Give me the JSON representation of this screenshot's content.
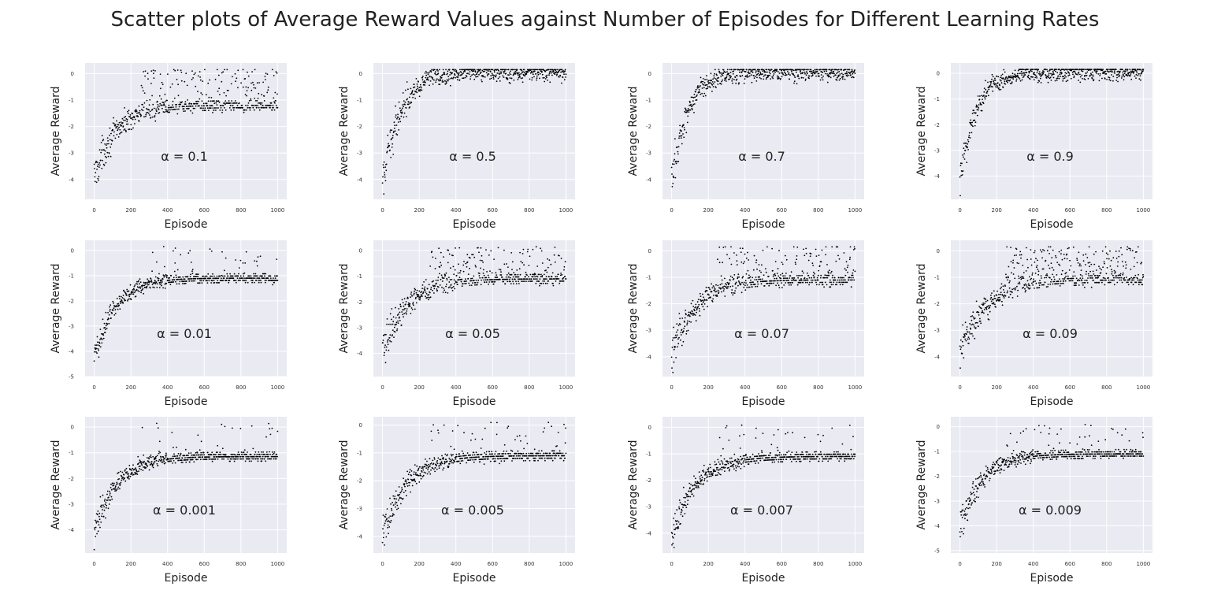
{
  "figure": {
    "title": "Scatter plots of Average Reward Values against Number of Episodes for Different Learning Rates"
  },
  "chart_data": [
    {
      "type": "scatter",
      "title": "",
      "annotation": "α = 0.1",
      "xlabel": "Episode",
      "ylabel": "Average Reward",
      "xlim": [
        -50,
        1050
      ],
      "ylim": [
        -4.75,
        0.4
      ],
      "xticks": [
        0,
        200,
        400,
        600,
        800,
        1000
      ],
      "yticks": [
        -4,
        -3,
        -2,
        -1,
        0
      ],
      "grid": true,
      "series": [
        {
          "marker_color": "#000000",
          "trend": {
            "start": -3.9,
            "end": -1.2,
            "rate": 0.0085,
            "offset": -0.2,
            "spread": 0.3,
            "outlier_frac": 0.35,
            "outlier_max": 0.15
          }
        }
      ]
    },
    {
      "type": "scatter",
      "title": "",
      "annotation": "α = 0.5",
      "xlabel": "Episode",
      "ylabel": "Average Reward",
      "xlim": [
        -50,
        1050
      ],
      "ylim": [
        -4.75,
        0.4
      ],
      "xticks": [
        0,
        200,
        400,
        600,
        800,
        1000
      ],
      "yticks": [
        -4,
        -3,
        -2,
        -1,
        0
      ],
      "grid": true,
      "series": [
        {
          "marker_color": "#000000",
          "trend": {
            "start": -4.3,
            "end": 0.05,
            "rate": 0.011,
            "offset": -0.5,
            "spread": 0.35,
            "outlier_frac": 0.02,
            "outlier_max": 0.1
          }
        }
      ]
    },
    {
      "type": "scatter",
      "title": "",
      "annotation": "α = 0.7",
      "xlabel": "Episode",
      "ylabel": "Average Reward",
      "xlim": [
        -50,
        1050
      ],
      "ylim": [
        -4.75,
        0.4
      ],
      "xticks": [
        0,
        200,
        400,
        600,
        800,
        1000
      ],
      "yticks": [
        -4,
        -3,
        -2,
        -1,
        0
      ],
      "grid": true,
      "series": [
        {
          "marker_color": "#000000",
          "trend": {
            "start": -4.2,
            "end": 0.05,
            "rate": 0.012,
            "offset": -0.45,
            "spread": 0.35,
            "outlier_frac": 0.02,
            "outlier_max": 0.1
          }
        }
      ]
    },
    {
      "type": "scatter",
      "title": "",
      "annotation": "α = 0.9",
      "xlabel": "Episode",
      "ylabel": "Average Reward",
      "xlim": [
        -50,
        1050
      ],
      "ylim": [
        -4.9,
        0.4
      ],
      "xticks": [
        0,
        200,
        400,
        600,
        800,
        1000
      ],
      "yticks": [
        -4,
        -3,
        -2,
        -1,
        0
      ],
      "grid": true,
      "series": [
        {
          "marker_color": "#000000",
          "trend": {
            "start": -4.3,
            "end": 0.05,
            "rate": 0.012,
            "offset": -0.5,
            "spread": 0.35,
            "outlier_frac": 0.02,
            "outlier_max": 0.1
          }
        }
      ]
    },
    {
      "type": "scatter",
      "title": "",
      "annotation": "α = 0.01",
      "xlabel": "Episode",
      "ylabel": "Average Reward",
      "xlim": [
        -50,
        1050
      ],
      "ylim": [
        -5.0,
        0.4
      ],
      "xticks": [
        0,
        200,
        400,
        600,
        800,
        1000
      ],
      "yticks": [
        -5,
        -4,
        -3,
        -2,
        -1,
        0
      ],
      "grid": true,
      "series": [
        {
          "marker_color": "#000000",
          "trend": {
            "start": -4.3,
            "end": -1.1,
            "rate": 0.009,
            "offset": -0.05,
            "spread": 0.25,
            "outlier_frac": 0.08,
            "outlier_max": 0.1
          }
        }
      ]
    },
    {
      "type": "scatter",
      "title": "",
      "annotation": "α = 0.05",
      "xlabel": "Episode",
      "ylabel": "Average Reward",
      "xlim": [
        -50,
        1050
      ],
      "ylim": [
        -4.9,
        0.4
      ],
      "xticks": [
        0,
        200,
        400,
        600,
        800,
        1000
      ],
      "yticks": [
        -4,
        -3,
        -2,
        -1,
        0
      ],
      "grid": true,
      "series": [
        {
          "marker_color": "#000000",
          "trend": {
            "start": -3.9,
            "end": -1.1,
            "rate": 0.0075,
            "offset": -0.1,
            "spread": 0.3,
            "outlier_frac": 0.3,
            "outlier_max": 0.1
          }
        }
      ]
    },
    {
      "type": "scatter",
      "title": "",
      "annotation": "α = 0.07",
      "xlabel": "Episode",
      "ylabel": "Average Reward",
      "xlim": [
        -50,
        1050
      ],
      "ylim": [
        -4.75,
        0.4
      ],
      "xticks": [
        0,
        200,
        400,
        600,
        800,
        1000
      ],
      "yticks": [
        -4,
        -3,
        -2,
        -1,
        0
      ],
      "grid": true,
      "series": [
        {
          "marker_color": "#000000",
          "trend": {
            "start": -4.0,
            "end": -1.1,
            "rate": 0.008,
            "offset": -0.1,
            "spread": 0.3,
            "outlier_frac": 0.32,
            "outlier_max": 0.15
          }
        }
      ]
    },
    {
      "type": "scatter",
      "title": "",
      "annotation": "α = 0.09",
      "xlabel": "Episode",
      "ylabel": "Average Reward",
      "xlim": [
        -50,
        1050
      ],
      "ylim": [
        -4.75,
        0.4
      ],
      "xticks": [
        0,
        200,
        400,
        600,
        800,
        1000
      ],
      "yticks": [
        -4,
        -3,
        -2,
        -1,
        0
      ],
      "grid": true,
      "series": [
        {
          "marker_color": "#000000",
          "trend": {
            "start": -4.0,
            "end": -1.1,
            "rate": 0.0075,
            "offset": -0.1,
            "spread": 0.3,
            "outlier_frac": 0.45,
            "outlier_max": 0.15
          }
        }
      ]
    },
    {
      "type": "scatter",
      "title": "",
      "annotation": "α = 0.001",
      "xlabel": "Episode",
      "ylabel": "Average Reward",
      "xlim": [
        -50,
        1050
      ],
      "ylim": [
        -4.9,
        0.4
      ],
      "xticks": [
        0,
        200,
        400,
        600,
        800,
        1000
      ],
      "yticks": [
        -4,
        -3,
        -2,
        -1,
        0
      ],
      "grid": true,
      "series": [
        {
          "marker_color": "#000000",
          "trend": {
            "start": -4.2,
            "end": -1.15,
            "rate": 0.0085,
            "offset": -0.05,
            "spread": 0.25,
            "outlier_frac": 0.07,
            "outlier_max": 0.1
          }
        }
      ]
    },
    {
      "type": "scatter",
      "title": "",
      "annotation": "α = 0.005",
      "xlabel": "Episode",
      "ylabel": "Average Reward",
      "xlim": [
        -50,
        1050
      ],
      "ylim": [
        -4.6,
        0.3
      ],
      "xticks": [
        0,
        200,
        400,
        600,
        800,
        1000
      ],
      "yticks": [
        -4,
        -3,
        -2,
        -1,
        0
      ],
      "grid": true,
      "series": [
        {
          "marker_color": "#000000",
          "trend": {
            "start": -4.0,
            "end": -1.1,
            "rate": 0.0078,
            "offset": -0.1,
            "spread": 0.25,
            "outlier_frac": 0.1,
            "outlier_max": 0.05
          }
        }
      ]
    },
    {
      "type": "scatter",
      "title": "",
      "annotation": "α = 0.007",
      "xlabel": "Episode",
      "ylabel": "Average Reward",
      "xlim": [
        -50,
        1050
      ],
      "ylim": [
        -4.75,
        0.4
      ],
      "xticks": [
        0,
        200,
        400,
        600,
        800,
        1000
      ],
      "yticks": [
        -4,
        -3,
        -2,
        -1,
        0
      ],
      "grid": true,
      "series": [
        {
          "marker_color": "#000000",
          "trend": {
            "start": -4.1,
            "end": -1.1,
            "rate": 0.0078,
            "offset": -0.1,
            "spread": 0.25,
            "outlier_frac": 0.08,
            "outlier_max": 0.1
          }
        }
      ]
    },
    {
      "type": "scatter",
      "title": "",
      "annotation": "α = 0.009",
      "xlabel": "Episode",
      "ylabel": "Average Reward",
      "xlim": [
        -50,
        1050
      ],
      "ylim": [
        -5.1,
        0.4
      ],
      "xticks": [
        0,
        200,
        400,
        600,
        800,
        1000
      ],
      "yticks": [
        -5,
        -4,
        -3,
        -2,
        -1,
        0
      ],
      "grid": true,
      "series": [
        {
          "marker_color": "#000000",
          "trend": {
            "start": -4.1,
            "end": -1.1,
            "rate": 0.0085,
            "offset": -0.1,
            "spread": 0.25,
            "outlier_frac": 0.08,
            "outlier_max": 0.1
          }
        }
      ]
    }
  ]
}
